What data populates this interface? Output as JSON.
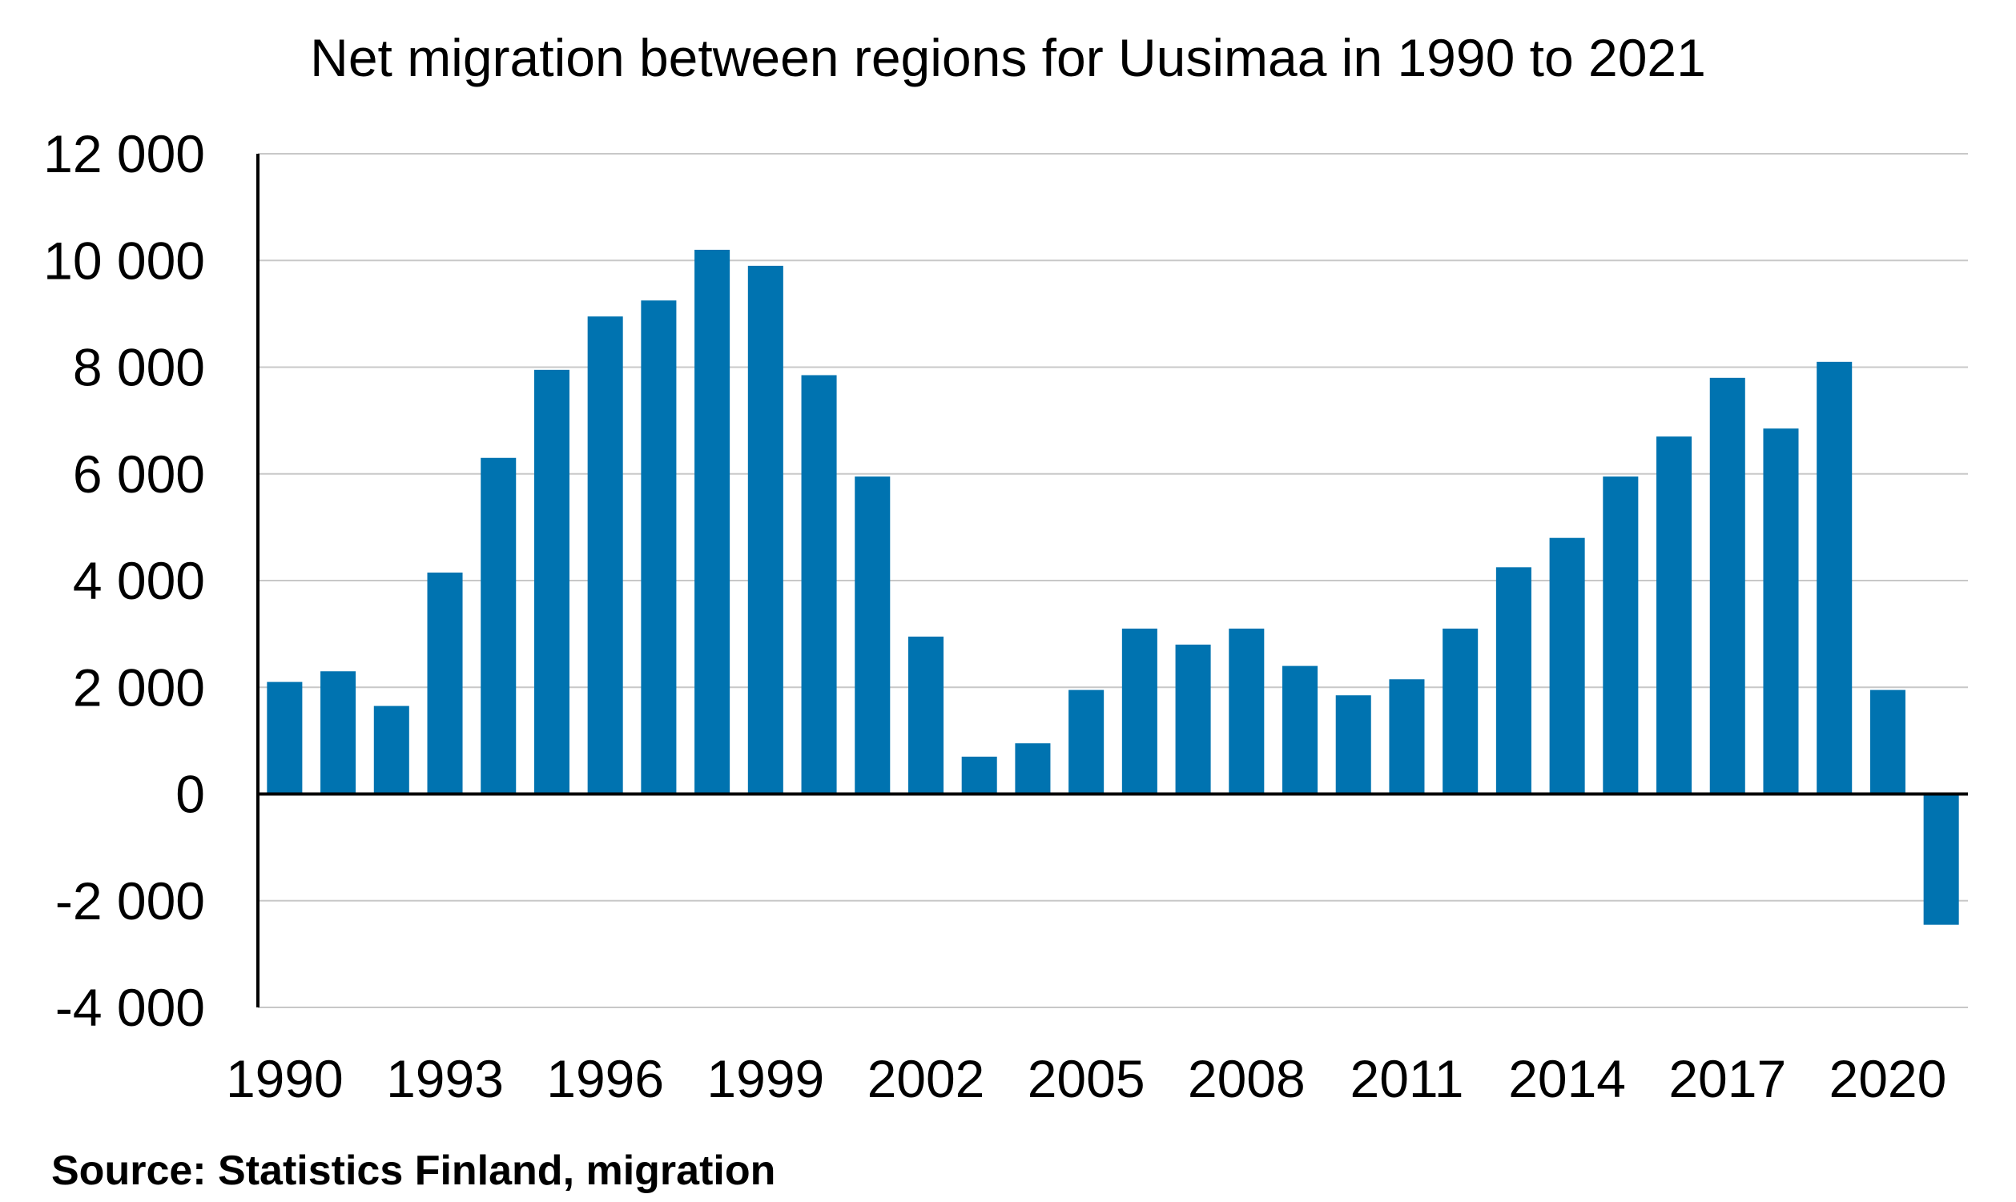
{
  "chart_data": {
    "type": "bar",
    "title": "Net migration between regions for Uusimaa in 1990 to 2021",
    "source": "Source: Statistics Finland, migration",
    "xlabel": "",
    "ylabel": "",
    "ylim": [
      -4000,
      12000
    ],
    "yticks": [
      12000,
      10000,
      8000,
      6000,
      4000,
      2000,
      0,
      -2000,
      -4000
    ],
    "ytick_labels": [
      "12 000",
      "10 000",
      "8 000",
      "6 000",
      "4 000",
      "2 000",
      "0",
      "-2 000",
      "-4 000"
    ],
    "grid": true,
    "categories": [
      "1990",
      "1991",
      "1992",
      "1993",
      "1994",
      "1995",
      "1996",
      "1997",
      "1998",
      "1999",
      "2000",
      "2001",
      "2002",
      "2003",
      "2004",
      "2005",
      "2006",
      "2007",
      "2008",
      "2009",
      "2010",
      "2011",
      "2012",
      "2013",
      "2014",
      "2015",
      "2016",
      "2017",
      "2018",
      "2019",
      "2020",
      "2021"
    ],
    "xtick_labels": [
      "1990",
      "1993",
      "1996",
      "1999",
      "2002",
      "2005",
      "2008",
      "2011",
      "2014",
      "2017",
      "2020"
    ],
    "values": [
      2100,
      2300,
      1650,
      4150,
      6300,
      7950,
      8950,
      9250,
      10200,
      9900,
      7850,
      5950,
      2950,
      700,
      950,
      1950,
      3100,
      2800,
      3100,
      2400,
      1850,
      2150,
      3100,
      4250,
      4800,
      5950,
      6700,
      7800,
      6850,
      8100,
      1950,
      -2450
    ],
    "colors": {
      "bar": "#0073b0",
      "grid": "#c8c8c8",
      "axis": "#000000"
    }
  }
}
